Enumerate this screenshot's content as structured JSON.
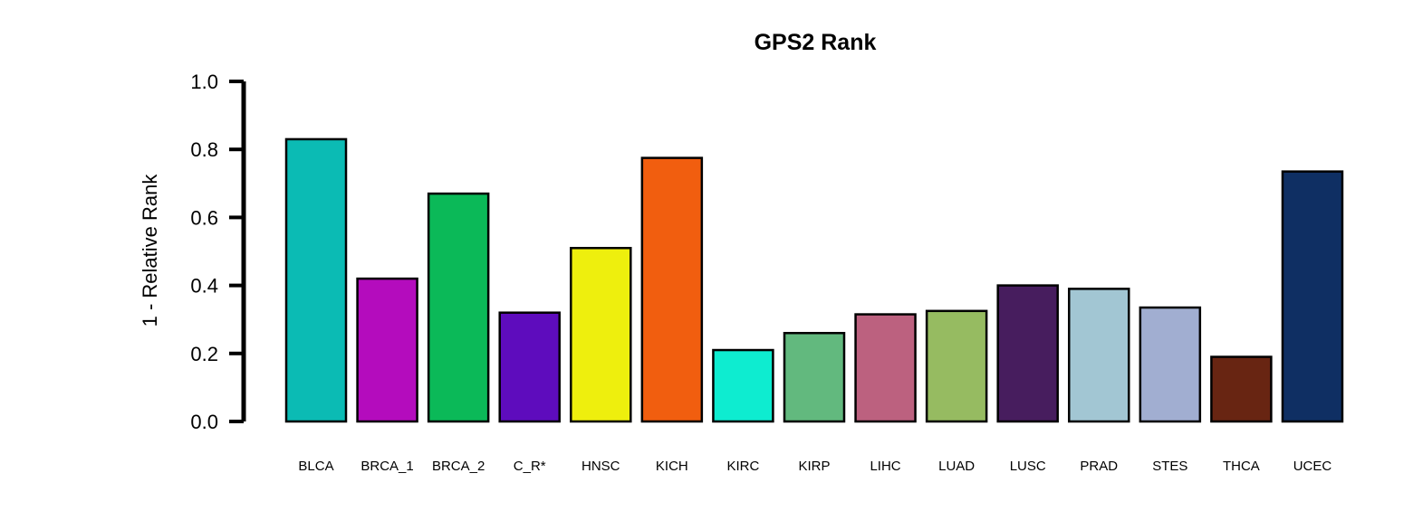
{
  "chart_data": {
    "type": "bar",
    "title": "GPS2 Rank",
    "xlabel": "",
    "ylabel": "1 - Relative Rank",
    "ylim": [
      0,
      1.0
    ],
    "yticks": [
      "0.0",
      "0.2",
      "0.4",
      "0.6",
      "0.8",
      "1.0"
    ],
    "grid": false,
    "categories": [
      "BLCA",
      "BRCA_1",
      "BRCA_2",
      "C_R*",
      "HNSC",
      "KICH",
      "KIRC",
      "KIRP",
      "LIHC",
      "LUAD",
      "LUSC",
      "PRAD",
      "STES",
      "THCA",
      "UCEC"
    ],
    "values": [
      0.83,
      0.42,
      0.67,
      0.32,
      0.51,
      0.775,
      0.21,
      0.26,
      0.315,
      0.325,
      0.4,
      0.39,
      0.335,
      0.19,
      0.735
    ],
    "colors": [
      "#0bbbb4",
      "#b40cbd",
      "#0bb958",
      "#5e0cbd",
      "#eeef0d",
      "#f15e0f",
      "#0eecd0",
      "#62b97e",
      "#bc617f",
      "#96bb61",
      "#471d5e",
      "#a2c6d3",
      "#a1aed1",
      "#682512",
      "#0f2f63"
    ]
  }
}
